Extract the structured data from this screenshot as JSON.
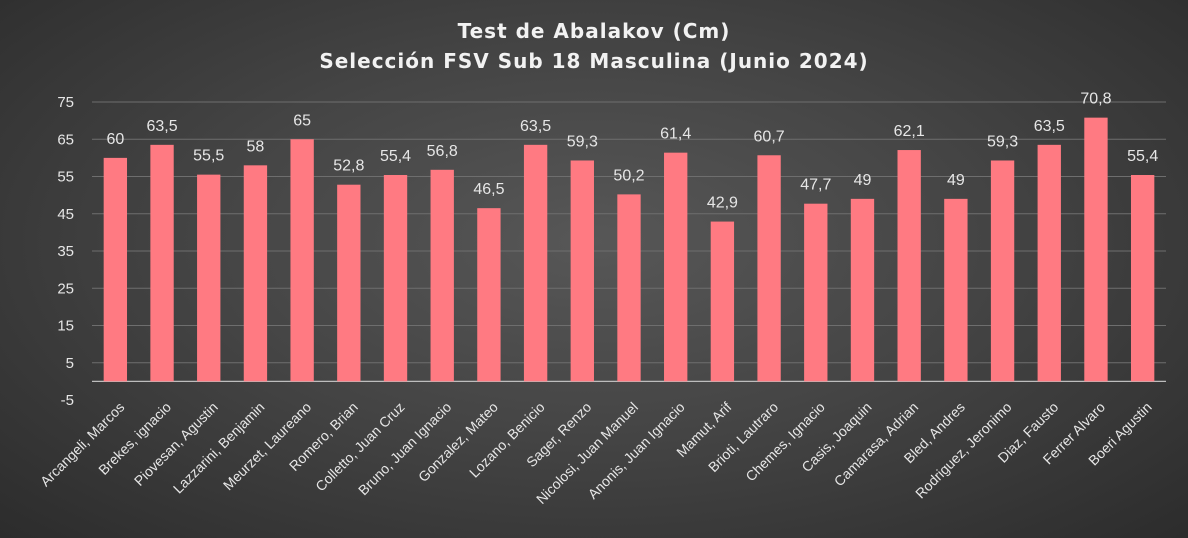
{
  "chart_data": {
    "type": "bar",
    "title": "Test de Abalakov (Cm)",
    "subtitle": "Selección FSV Sub 18 Masculina (Junio 2024)",
    "categories": [
      "Arcangeli, Marcos",
      "Brekes, ignacio",
      "Piovesan, Agustin",
      "Lazzarini, Benjamin",
      "Meurzet, Laureano",
      "Romero, Brian",
      "Colletto, Juan Cruz",
      "Bruno, Juan Ignacio",
      "Gonzalez, Mateo",
      "Lozano, Benicio",
      "Sager, Renzo",
      "Nicolosi, Juan Manuel",
      "Anonis, Juan Ignacio",
      "Mamut, Arif",
      "Brioti, Lautraro",
      "Chemes, Ignacio",
      "Casis, Joaquin",
      "Camarasa, Adrian",
      "Bled, Andres",
      "Rodriguez, Jeronimo",
      "Diaz, Fausto",
      "Ferrer Alvaro",
      "Boeri Agustin"
    ],
    "values": [
      60,
      63.5,
      55.5,
      58,
      65,
      52.8,
      55.4,
      56.8,
      46.5,
      63.5,
      59.3,
      50.2,
      61.4,
      42.9,
      60.7,
      47.7,
      49,
      62.1,
      49,
      59.3,
      63.5,
      70.8,
      55.4
    ],
    "data_labels": [
      "60",
      "63,5",
      "55,5",
      "58",
      "65",
      "52,8",
      "55,4",
      "56,8",
      "46,5",
      "63,5",
      "59,3",
      "50,2",
      "61,4",
      "42,9",
      "60,7",
      "47,7",
      "49",
      "62,1",
      "49",
      "59,3",
      "63,5",
      "70,8",
      "55,4"
    ],
    "yticks": [
      -5,
      5,
      15,
      25,
      35,
      45,
      55,
      65,
      75
    ],
    "ylim": [
      -5,
      75
    ],
    "xlabel": "",
    "ylabel": "",
    "grid": true,
    "legend": "none",
    "colors": {
      "bar": "#ff7a82",
      "grid": "#6e6e6e",
      "axis": "#bdbdbd",
      "text": "#e6e6e6",
      "title": "#f2f2f2"
    }
  }
}
